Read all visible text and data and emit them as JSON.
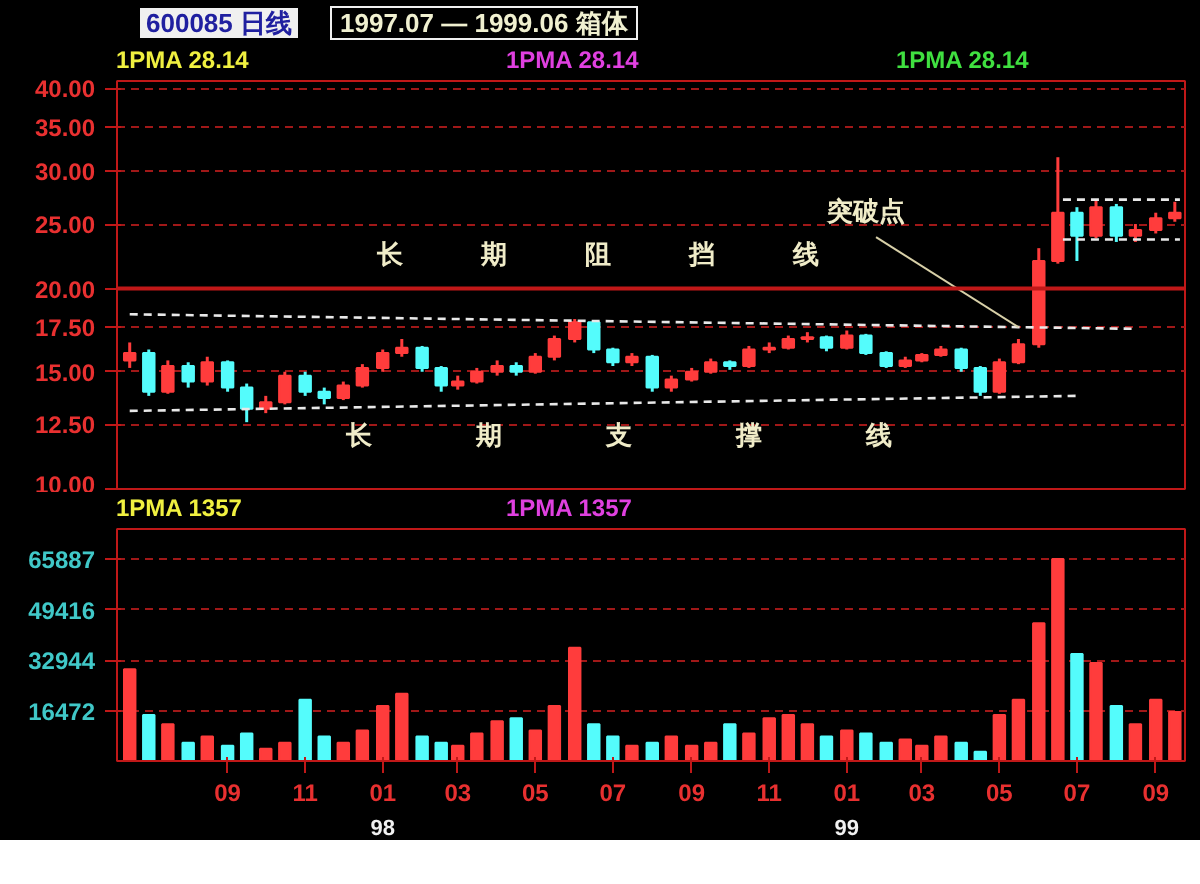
{
  "chart_data": [
    {
      "type": "candlestick",
      "title": "1997.07 — 1999.06 箱体",
      "subtitle": "600085 日线",
      "log": true,
      "grid": "y",
      "tick_labels": "y",
      "x": [
        "1997-06-16",
        "1997-07-01",
        "1997-07-16",
        "1997-08-01",
        "1997-08-16",
        "1997-09-01",
        "1997-09-16",
        "1997-10-01",
        "1997-10-16",
        "1997-11-01",
        "1997-11-16",
        "1997-12-01",
        "1997-12-16",
        "1998-01-01",
        "1998-01-16",
        "1998-02-01",
        "1998-02-16",
        "1998-03-01",
        "1998-03-16",
        "1998-04-01",
        "1998-04-16",
        "1998-05-01",
        "1998-05-16",
        "1998-06-01",
        "1998-06-16",
        "1998-07-01",
        "1998-07-16",
        "1998-08-01",
        "1998-08-16",
        "1998-09-01",
        "1998-09-16",
        "1998-10-01",
        "1998-10-16",
        "1998-11-01",
        "1998-11-16",
        "1998-12-01",
        "1998-12-16",
        "1999-01-01",
        "1999-01-16",
        "1999-02-01",
        "1999-02-16",
        "1999-03-01",
        "1999-03-16",
        "1999-04-01",
        "1999-04-16",
        "1999-05-01",
        "1999-05-16",
        "1999-06-01",
        "1999-06-16",
        "1999-07-01",
        "1999-07-16",
        "1999-08-01",
        "1999-08-16",
        "1999-09-01",
        "1999-09-16"
      ],
      "ohlc": [
        [
          15.6,
          16.6,
          15.2,
          16.0
        ],
        [
          16.0,
          16.2,
          13.8,
          14.0
        ],
        [
          14.0,
          15.6,
          13.9,
          15.3
        ],
        [
          15.3,
          15.5,
          14.2,
          14.5
        ],
        [
          14.5,
          15.8,
          14.3,
          15.5
        ],
        [
          15.5,
          15.6,
          14.0,
          14.2
        ],
        [
          14.2,
          14.4,
          12.6,
          13.2
        ],
        [
          13.2,
          13.8,
          13.0,
          13.5
        ],
        [
          13.5,
          15.0,
          13.4,
          14.8
        ],
        [
          14.8,
          15.0,
          13.8,
          14.0
        ],
        [
          14.0,
          14.2,
          13.4,
          13.7
        ],
        [
          13.7,
          14.5,
          13.6,
          14.3
        ],
        [
          14.3,
          15.4,
          14.2,
          15.2
        ],
        [
          15.2,
          16.2,
          15.0,
          16.0
        ],
        [
          16.0,
          16.8,
          15.8,
          16.3
        ],
        [
          16.3,
          16.4,
          15.0,
          15.2
        ],
        [
          15.2,
          15.3,
          14.0,
          14.3
        ],
        [
          14.3,
          14.8,
          14.1,
          14.5
        ],
        [
          14.5,
          15.2,
          14.4,
          15.0
        ],
        [
          15.0,
          15.6,
          14.8,
          15.3
        ],
        [
          15.3,
          15.5,
          14.8,
          15.0
        ],
        [
          15.0,
          16.0,
          14.9,
          15.8
        ],
        [
          15.8,
          17.0,
          15.6,
          16.8
        ],
        [
          16.8,
          18.0,
          16.6,
          17.8
        ],
        [
          17.8,
          17.9,
          16.0,
          16.2
        ],
        [
          16.2,
          16.3,
          15.3,
          15.5
        ],
        [
          15.5,
          16.0,
          15.3,
          15.8
        ],
        [
          15.8,
          15.9,
          14.0,
          14.2
        ],
        [
          14.2,
          14.8,
          14.0,
          14.6
        ],
        [
          14.6,
          15.2,
          14.5,
          15.0
        ],
        [
          15.0,
          15.7,
          14.9,
          15.5
        ],
        [
          15.5,
          15.6,
          15.1,
          15.3
        ],
        [
          15.3,
          16.4,
          15.2,
          16.2
        ],
        [
          16.2,
          16.6,
          16.0,
          16.3
        ],
        [
          16.3,
          17.0,
          16.2,
          16.8
        ],
        [
          16.8,
          17.2,
          16.6,
          16.9
        ],
        [
          16.9,
          17.0,
          16.1,
          16.3
        ],
        [
          16.3,
          17.3,
          16.2,
          17.0
        ],
        [
          17.0,
          17.1,
          15.9,
          16.0
        ],
        [
          16.0,
          16.1,
          15.2,
          15.3
        ],
        [
          15.3,
          15.8,
          15.2,
          15.6
        ],
        [
          15.6,
          16.0,
          15.5,
          15.9
        ],
        [
          15.9,
          16.4,
          15.8,
          16.2
        ],
        [
          16.2,
          16.3,
          15.0,
          15.2
        ],
        [
          15.2,
          15.3,
          13.8,
          14.0
        ],
        [
          14.0,
          15.7,
          13.9,
          15.5
        ],
        [
          15.5,
          16.8,
          15.4,
          16.5
        ],
        [
          16.5,
          23.0,
          16.3,
          22.0
        ],
        [
          22.0,
          31.5,
          21.8,
          26.0
        ],
        [
          26.0,
          26.5,
          22.0,
          24.0
        ],
        [
          24.0,
          27.2,
          23.8,
          26.5
        ],
        [
          26.5,
          26.8,
          23.5,
          24.0
        ],
        [
          24.0,
          25.0,
          23.5,
          24.5
        ],
        [
          24.5,
          26.0,
          24.2,
          25.5
        ],
        [
          25.5,
          27.0,
          25.2,
          26.0
        ]
      ],
      "colors": [
        "#ff3c3c",
        "#54fcfc",
        "#ff3c3c",
        "#54fcfc",
        "#ff3c3c",
        "#54fcfc",
        "#54fcfc",
        "#ff3c3c",
        "#ff3c3c",
        "#54fcfc",
        "#54fcfc",
        "#ff3c3c",
        "#ff3c3c",
        "#ff3c3c",
        "#ff3c3c",
        "#54fcfc",
        "#54fcfc",
        "#ff3c3c",
        "#ff3c3c",
        "#ff3c3c",
        "#54fcfc",
        "#ff3c3c",
        "#ff3c3c",
        "#ff3c3c",
        "#54fcfc",
        "#54fcfc",
        "#ff3c3c",
        "#54fcfc",
        "#ff3c3c",
        "#ff3c3c",
        "#ff3c3c",
        "#54fcfc",
        "#ff3c3c",
        "#ff3c3c",
        "#ff3c3c",
        "#ff3c3c",
        "#54fcfc",
        "#ff3c3c",
        "#54fcfc",
        "#54fcfc",
        "#ff3c3c",
        "#ff3c3c",
        "#ff3c3c",
        "#54fcfc",
        "#54fcfc",
        "#ff3c3c",
        "#ff3c3c",
        "#ff3c3c",
        "#ff3c3c",
        "#54fcfc",
        "#ff3c3c",
        "#54fcfc",
        "#ff3c3c",
        "#ff3c3c",
        "#ff3c3c"
      ],
      "series": [
        {
          "type": "line",
          "color": "#e8e8e8",
          "line_style": "dashed",
          "x": [
            "1997-06-16",
            "1999-08-16"
          ],
          "values": [
            18.3,
            17.4
          ]
        },
        {
          "type": "line",
          "color": "#e8e8e8",
          "line_style": "dashed",
          "x": [
            "1997-06-16",
            "1999-07-01"
          ],
          "values": [
            13.1,
            13.8
          ]
        },
        {
          "type": "line",
          "color": "#e8e8e8",
          "line_style": "dashed",
          "x": [
            "1999-06-20",
            "1999-09-20"
          ],
          "values": [
            27.2,
            27.2
          ]
        },
        {
          "type": "line",
          "color": "#e8e8e8",
          "line_style": "dashed",
          "x": [
            "1999-06-20",
            "1999-09-20"
          ],
          "values": [
            23.7,
            23.7
          ]
        }
      ],
      "ref_lines": [
        {
          "axis": "y",
          "value": 20,
          "color": "#c01818",
          "line_style": "solid"
        }
      ],
      "xlim": [
        "1997-06-06",
        "1999-09-24"
      ],
      "ylim": [
        10,
        41
      ],
      "yticks": [
        {
          "value": 10,
          "label": "10.00"
        },
        {
          "value": 12.5,
          "label": "12.50"
        },
        {
          "value": 15,
          "label": "15.00"
        },
        {
          "value": 17.5,
          "label": "17.50"
        },
        {
          "value": 20,
          "label": "20.00"
        },
        {
          "value": 25,
          "label": "25.00"
        },
        {
          "value": 30,
          "label": "30.00"
        },
        {
          "value": 35,
          "label": "35.00"
        },
        {
          "value": 40,
          "label": "40.00"
        }
      ],
      "annotations": [
        "1PMA 28.14",
        "1PMA 28.14",
        "1PMA 28.14",
        {
          "text": "突破点",
          "x": "1999-05-16",
          "y": 17.5
        },
        "长　　　期　　　阻　　　挡　　　线",
        "长　　　　期　　　　支　　　　撑　　　　线"
      ]
    },
    {
      "type": "bar",
      "grid": "y",
      "x": [
        "1997-06-16",
        "1997-07-01",
        "1997-07-16",
        "1997-08-01",
        "1997-08-16",
        "1997-09-01",
        "1997-09-16",
        "1997-10-01",
        "1997-10-16",
        "1997-11-01",
        "1997-11-16",
        "1997-12-01",
        "1997-12-16",
        "1998-01-01",
        "1998-01-16",
        "1998-02-01",
        "1998-02-16",
        "1998-03-01",
        "1998-03-16",
        "1998-04-01",
        "1998-04-16",
        "1998-05-01",
        "1998-05-16",
        "1998-06-01",
        "1998-06-16",
        "1998-07-01",
        "1998-07-16",
        "1998-08-01",
        "1998-08-16",
        "1998-09-01",
        "1998-09-16",
        "1998-10-01",
        "1998-10-16",
        "1998-11-01",
        "1998-11-16",
        "1998-12-01",
        "1998-12-16",
        "1999-01-01",
        "1999-01-16",
        "1999-02-01",
        "1999-02-16",
        "1999-03-01",
        "1999-03-16",
        "1999-04-01",
        "1999-04-16",
        "1999-05-01",
        "1999-05-16",
        "1999-06-01",
        "1999-06-16",
        "1999-07-01",
        "1999-07-16",
        "1999-08-01",
        "1999-08-16",
        "1999-09-01",
        "1999-09-16"
      ],
      "values": [
        30000,
        15000,
        12000,
        6000,
        8000,
        5000,
        9000,
        4000,
        6000,
        20000,
        8000,
        6000,
        10000,
        18000,
        22000,
        8000,
        6000,
        5000,
        9000,
        13000,
        14000,
        10000,
        18000,
        37000,
        12000,
        8000,
        5000,
        6000,
        8000,
        5000,
        6000,
        12000,
        9000,
        14000,
        15000,
        12000,
        8000,
        10000,
        9000,
        6000,
        7000,
        5000,
        8000,
        6000,
        3000,
        15000,
        20000,
        45000,
        66000,
        35000,
        32000,
        18000,
        12000,
        20000,
        16000
      ],
      "colors": [
        "#ff3c3c",
        "#54fcfc",
        "#ff3c3c",
        "#54fcfc",
        "#ff3c3c",
        "#54fcfc",
        "#54fcfc",
        "#ff3c3c",
        "#ff3c3c",
        "#54fcfc",
        "#54fcfc",
        "#ff3c3c",
        "#ff3c3c",
        "#ff3c3c",
        "#ff3c3c",
        "#54fcfc",
        "#54fcfc",
        "#ff3c3c",
        "#ff3c3c",
        "#ff3c3c",
        "#54fcfc",
        "#ff3c3c",
        "#ff3c3c",
        "#ff3c3c",
        "#54fcfc",
        "#54fcfc",
        "#ff3c3c",
        "#54fcfc",
        "#ff3c3c",
        "#ff3c3c",
        "#ff3c3c",
        "#54fcfc",
        "#ff3c3c",
        "#ff3c3c",
        "#ff3c3c",
        "#ff3c3c",
        "#54fcfc",
        "#ff3c3c",
        "#54fcfc",
        "#54fcfc",
        "#ff3c3c",
        "#ff3c3c",
        "#ff3c3c",
        "#54fcfc",
        "#54fcfc",
        "#ff3c3c",
        "#ff3c3c",
        "#ff3c3c",
        "#ff3c3c",
        "#54fcfc",
        "#ff3c3c",
        "#54fcfc",
        "#ff3c3c",
        "#ff3c3c",
        "#ff3c3c"
      ],
      "xlim": [
        "1997-06-06",
        "1999-09-24"
      ],
      "xticks": [
        {
          "value": "1997-09-01",
          "label": "09"
        },
        {
          "value": "1997-11-01",
          "label": "11"
        },
        {
          "value": "1998-01-01",
          "label": "01"
        },
        {
          "value": "1998-03-01",
          "label": "03"
        },
        {
          "value": "1998-05-01",
          "label": "05"
        },
        {
          "value": "1998-07-01",
          "label": "07"
        },
        {
          "value": "1998-09-01",
          "label": "09"
        },
        {
          "value": "1998-11-01",
          "label": "11"
        },
        {
          "value": "1999-01-01",
          "label": "01"
        },
        {
          "value": "1999-03-01",
          "label": "03"
        },
        {
          "value": "1999-05-01",
          "label": "05"
        },
        {
          "value": "1999-07-01",
          "label": "07"
        },
        {
          "value": "1999-09-01",
          "label": "09"
        }
      ],
      "ylim": [
        0,
        75800
      ],
      "yticks": [
        16472,
        32944,
        49416,
        65887
      ],
      "annotations": [
        "1PMA 1357",
        "1PMA 1357",
        "98",
        "99"
      ]
    }
  ]
}
